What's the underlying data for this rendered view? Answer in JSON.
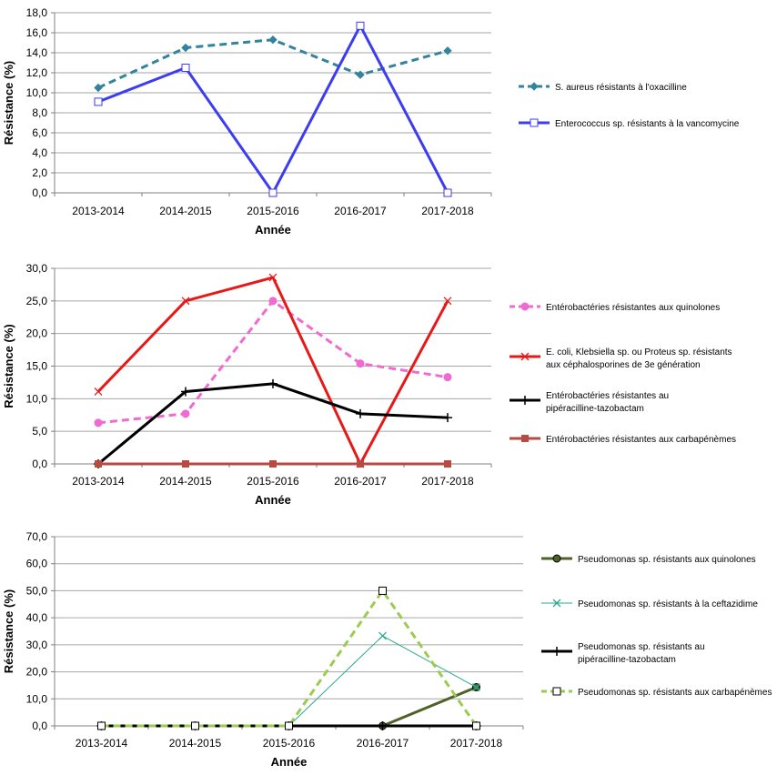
{
  "chart_data": [
    {
      "type": "line",
      "xlabel": "Année",
      "ylabel": "Résistance (%)",
      "categories": [
        "2013-2014",
        "2014-2015",
        "2015-2016",
        "2016-2017",
        "2017-2018"
      ],
      "ylim": [
        0,
        18
      ],
      "yticks": [
        "0,0",
        "2,0",
        "4,0",
        "6,0",
        "8,0",
        "10,0",
        "12,0",
        "14,0",
        "16,0",
        "18,0"
      ],
      "grid": true,
      "legend": "right",
      "series": [
        {
          "name": "S. aureus résistants à l'oxacilline",
          "values": [
            10.5,
            14.5,
            15.3,
            11.8,
            14.2
          ],
          "color": "#31849b",
          "dash": true,
          "marker": "diamond"
        },
        {
          "name": "Enterococcus sp. résistants à la vancomycine",
          "values": [
            9.1,
            12.5,
            0.0,
            16.7,
            0.0
          ],
          "color": "#3c3cf0",
          "dash": false,
          "marker": "square-open"
        }
      ]
    },
    {
      "type": "line",
      "xlabel": "Année",
      "ylabel": "Résistance (%)",
      "categories": [
        "2013-2014",
        "2014-2015",
        "2015-2016",
        "2016-2017",
        "2017-2018"
      ],
      "ylim": [
        0,
        30
      ],
      "yticks": [
        "0,0",
        "5,0",
        "10,0",
        "15,0",
        "20,0",
        "25,0",
        "30,0"
      ],
      "grid": true,
      "legend": "right",
      "series": [
        {
          "name": "Entérobactéries résistantes aux quinolones",
          "values": [
            6.3,
            7.7,
            25.0,
            15.4,
            13.3
          ],
          "color": "#f06ad2",
          "dash": true,
          "marker": "circle"
        },
        {
          "name": "E. coli, Klebsiella sp. ou Proteus sp. résistants aux céphalosporines de 3e génération",
          "values": [
            11.1,
            25.0,
            28.6,
            0.0,
            25.0
          ],
          "color": "#e81818",
          "dash": false,
          "marker": "x"
        },
        {
          "name": "Entérobactéries résistantes au pipéracilline-tazobactam",
          "values": [
            0.0,
            11.1,
            12.3,
            7.7,
            7.1
          ],
          "color": "#000000",
          "dash": false,
          "marker": "plus"
        },
        {
          "name": "Entérobactéries résistantes aux carbapénèmes",
          "values": [
            0.0,
            0.0,
            0.0,
            0.0,
            0.0
          ],
          "color": "#b84a44",
          "dash": false,
          "marker": "square"
        }
      ]
    },
    {
      "type": "line",
      "xlabel": "Année",
      "ylabel": "Résistance (%)",
      "categories": [
        "2013-2014",
        "2014-2015",
        "2015-2016",
        "2016-2017",
        "2017-2018"
      ],
      "ylim": [
        0,
        70
      ],
      "yticks": [
        "0,0",
        "10,0",
        "20,0",
        "30,0",
        "40,0",
        "50,0",
        "60,0",
        "70,0"
      ],
      "grid": true,
      "legend": "right",
      "series": [
        {
          "name": "Pseudomonas sp. résistants aux quinolones",
          "values": [
            0.0,
            0.0,
            0.0,
            0.0,
            14.3
          ],
          "color": "#4f6228",
          "dash": false,
          "marker": "circle"
        },
        {
          "name": "Pseudomonas sp. résistants à la ceftazidime",
          "values": [
            0.0,
            0.0,
            0.0,
            33.3,
            14.3
          ],
          "color": "#2aa88e",
          "dash": false,
          "marker": "x"
        },
        {
          "name": "Pseudomonas sp. résistants au pipéracilline-tazobactam",
          "values": [
            0.0,
            0.0,
            0.0,
            0.0,
            0.0
          ],
          "color": "#000000",
          "dash": false,
          "marker": "plus"
        },
        {
          "name": "Pseudomonas sp. résistants aux carbapénèmes",
          "values": [
            0.0,
            0.0,
            0.0,
            50.0,
            0.0
          ],
          "color": "#9bcb50",
          "dash": true,
          "marker": "square-open"
        }
      ]
    }
  ]
}
